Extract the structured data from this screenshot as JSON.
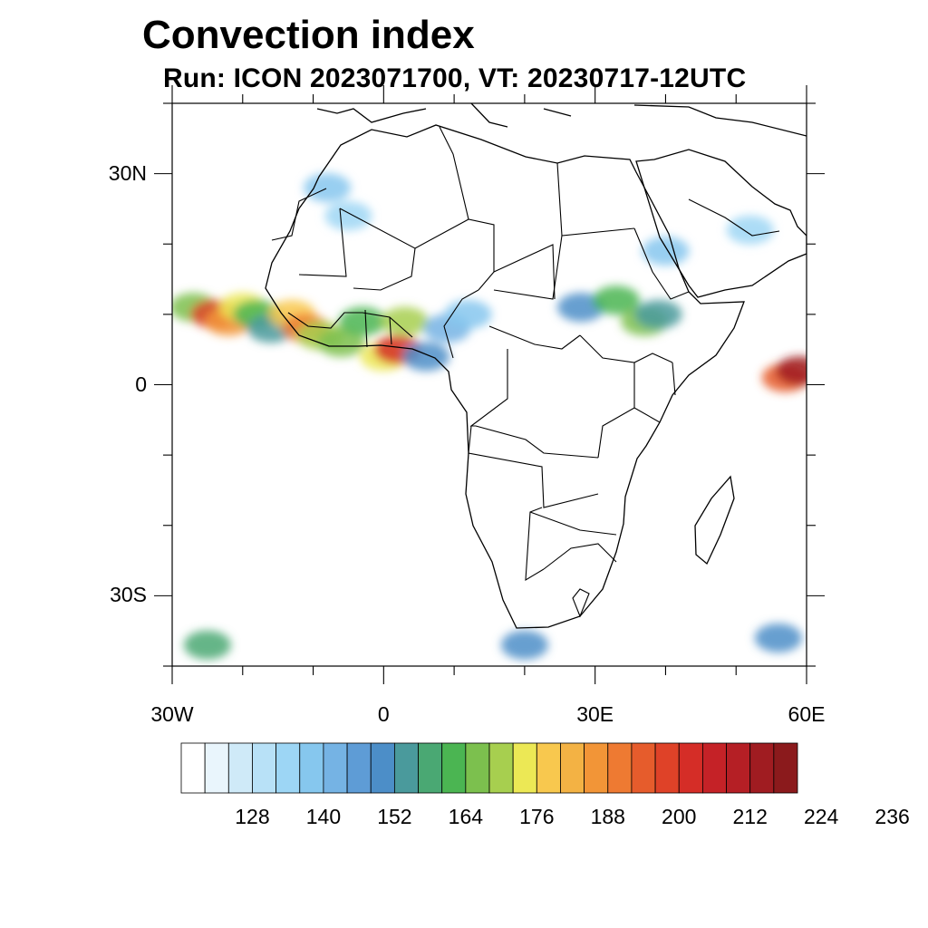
{
  "title": "Convection index",
  "subtitle": "Run: ICON 2023071700,  VT: 20230717-12UTC",
  "map": {
    "lon_range": [
      -30,
      60
    ],
    "lat_range": [
      -40,
      40
    ],
    "lat_labels": [
      {
        "text": "30N",
        "lat": 30
      },
      {
        "text": "0",
        "lat": 0
      },
      {
        "text": "30S",
        "lat": -30
      }
    ],
    "lon_labels": [
      {
        "text": "30W",
        "lon": -30
      },
      {
        "text": "0",
        "lon": 0
      },
      {
        "text": "30E",
        "lon": 30
      },
      {
        "text": "60E",
        "lon": 60
      }
    ]
  },
  "colorbar": {
    "colors": [
      "#ffffff",
      "#e9f5fc",
      "#cfeaf8",
      "#b8e1f7",
      "#9dd6f5",
      "#86c7ee",
      "#75b3e4",
      "#5e9cd6",
      "#4c8ec8",
      "#4a9a9c",
      "#4aa873",
      "#4bb552",
      "#7cc04e",
      "#a7cf4f",
      "#ece855",
      "#f8c84e",
      "#f3b244",
      "#f29537",
      "#ee7a32",
      "#e65c2c",
      "#df4228",
      "#d52d27",
      "#c52227",
      "#b51f25",
      "#a01c21",
      "#8b1a1c"
    ],
    "tick_labels": [
      "128",
      "140",
      "152",
      "164",
      "176",
      "188",
      "200",
      "212",
      "224",
      "236"
    ]
  },
  "cells": [
    {
      "lon": -27,
      "lat": 11,
      "value": 168
    },
    {
      "lon": -24,
      "lat": 10,
      "value": 198
    },
    {
      "lon": -22,
      "lat": 9,
      "value": 186
    },
    {
      "lon": -20,
      "lat": 11,
      "value": 175
    },
    {
      "lon": -18,
      "lat": 10,
      "value": 164
    },
    {
      "lon": -16,
      "lat": 8,
      "value": 156
    },
    {
      "lon": -13,
      "lat": 10,
      "value": 178
    },
    {
      "lon": -11,
      "lat": 8,
      "value": 190
    },
    {
      "lon": -9,
      "lat": 7,
      "value": 172
    },
    {
      "lon": -6,
      "lat": 6,
      "value": 168
    },
    {
      "lon": -3,
      "lat": 9,
      "value": 162
    },
    {
      "lon": 0,
      "lat": 4,
      "value": 176
    },
    {
      "lon": 2,
      "lat": 5,
      "value": 204
    },
    {
      "lon": 3,
      "lat": 9,
      "value": 170
    },
    {
      "lon": 6,
      "lat": 4,
      "value": 150
    },
    {
      "lon": 9,
      "lat": 8,
      "value": 142
    },
    {
      "lon": 12,
      "lat": 10,
      "value": 138
    },
    {
      "lon": 28,
      "lat": 11,
      "value": 150
    },
    {
      "lon": 33,
      "lat": 12,
      "value": 162
    },
    {
      "lon": 37,
      "lat": 9,
      "value": 168
    },
    {
      "lon": 39,
      "lat": 10,
      "value": 156
    },
    {
      "lon": 40,
      "lat": 19,
      "value": 138
    },
    {
      "lon": 52,
      "lat": 22,
      "value": 136
    },
    {
      "lon": 57,
      "lat": 1,
      "value": 196
    },
    {
      "lon": 59,
      "lat": 2,
      "value": 214
    },
    {
      "lon": -8,
      "lat": 28,
      "value": 140
    },
    {
      "lon": -5,
      "lat": 24,
      "value": 134
    },
    {
      "lon": -25,
      "lat": -37,
      "value": 160
    },
    {
      "lon": 20,
      "lat": -37,
      "value": 150
    },
    {
      "lon": 56,
      "lat": -36,
      "value": 152
    }
  ]
}
